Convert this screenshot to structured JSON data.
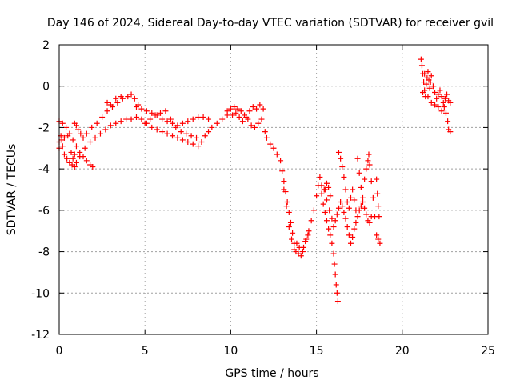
{
  "chart_data": {
    "type": "scatter",
    "title": "Day 146 of 2024, Sidereal Day-to-day VTEC variation (SDTVAR) for receiver gvil",
    "xlabel": "GPS time / hours",
    "ylabel": "SDTVAR / TECUs",
    "xlim": [
      0,
      25
    ],
    "ylim": [
      -12,
      2
    ],
    "xticks": [
      "0",
      "5",
      "10",
      "15",
      "20",
      "25"
    ],
    "yticks": [
      "2",
      "0",
      "-2",
      "-4",
      "-6",
      "-8",
      "-10",
      "-12"
    ],
    "xtick_values": [
      0,
      5,
      10,
      15,
      20,
      25
    ],
    "ytick_values": [
      2,
      0,
      -2,
      -4,
      -6,
      -8,
      -10,
      -12
    ],
    "grid": true,
    "marker": "+",
    "color": "#ff0000",
    "series": [
      {
        "name": "SDTVAR",
        "points": [
          [
            0.0,
            -3.0
          ],
          [
            0.1,
            -2.4
          ],
          [
            0.2,
            -2.9
          ],
          [
            0.3,
            -3.3
          ],
          [
            0.45,
            -3.5
          ],
          [
            0.6,
            -3.7
          ],
          [
            0.75,
            -3.8
          ],
          [
            0.9,
            -3.9
          ],
          [
            1.0,
            -3.7
          ],
          [
            1.2,
            -3.4
          ],
          [
            1.5,
            -3.0
          ],
          [
            1.8,
            -2.7
          ],
          [
            2.1,
            -2.5
          ],
          [
            2.4,
            -2.3
          ],
          [
            2.7,
            -2.1
          ],
          [
            3.0,
            -1.9
          ],
          [
            3.3,
            -1.8
          ],
          [
            3.6,
            -1.7
          ],
          [
            3.9,
            -1.6
          ],
          [
            4.2,
            -1.6
          ],
          [
            4.5,
            -1.5
          ],
          [
            4.8,
            -1.6
          ],
          [
            5.1,
            -1.8
          ],
          [
            5.4,
            -2.0
          ],
          [
            5.7,
            -2.1
          ],
          [
            6.0,
            -2.2
          ],
          [
            6.3,
            -2.3
          ],
          [
            6.6,
            -2.4
          ],
          [
            6.9,
            -2.5
          ],
          [
            7.2,
            -2.6
          ],
          [
            7.5,
            -2.7
          ],
          [
            7.8,
            -2.8
          ],
          [
            8.1,
            -2.9
          ],
          [
            8.3,
            -2.7
          ],
          [
            8.5,
            -2.4
          ],
          [
            8.7,
            -2.2
          ],
          [
            8.9,
            -2.0
          ],
          [
            9.2,
            -1.8
          ],
          [
            9.5,
            -1.6
          ],
          [
            9.8,
            -1.4
          ],
          [
            0.0,
            -1.7
          ],
          [
            0.2,
            -1.8
          ],
          [
            0.4,
            -2.0
          ],
          [
            0.6,
            -2.3
          ],
          [
            0.8,
            -2.6
          ],
          [
            1.0,
            -2.9
          ],
          [
            1.2,
            -3.2
          ],
          [
            1.4,
            -3.4
          ],
          [
            1.6,
            -3.6
          ],
          [
            1.8,
            -3.8
          ],
          [
            1.95,
            -3.9
          ],
          [
            0.0,
            -2.7
          ],
          [
            0.15,
            -2.6
          ],
          [
            0.3,
            -2.5
          ],
          [
            0.5,
            -2.4
          ],
          [
            0.7,
            -3.2
          ],
          [
            0.8,
            -3.5
          ],
          [
            0.9,
            -3.3
          ],
          [
            0.9,
            -1.8
          ],
          [
            1.0,
            -1.9
          ],
          [
            1.1,
            -2.1
          ],
          [
            1.25,
            -2.3
          ],
          [
            1.4,
            -2.5
          ],
          [
            1.6,
            -2.3
          ],
          [
            1.9,
            -2.0
          ],
          [
            2.2,
            -1.8
          ],
          [
            2.5,
            -1.5
          ],
          [
            2.8,
            -1.2
          ],
          [
            3.1,
            -1.0
          ],
          [
            3.4,
            -0.8
          ],
          [
            3.7,
            -0.6
          ],
          [
            4.0,
            -0.5
          ],
          [
            4.2,
            -0.4
          ],
          [
            4.4,
            -0.6
          ],
          [
            4.6,
            -0.9
          ],
          [
            2.8,
            -0.8
          ],
          [
            3.0,
            -0.9
          ],
          [
            3.3,
            -0.6
          ],
          [
            3.6,
            -0.5
          ],
          [
            4.5,
            -1.0
          ],
          [
            4.8,
            -1.1
          ],
          [
            5.1,
            -1.2
          ],
          [
            5.4,
            -1.3
          ],
          [
            5.7,
            -1.4
          ],
          [
            6.0,
            -1.6
          ],
          [
            6.3,
            -1.7
          ],
          [
            6.6,
            -1.8
          ],
          [
            6.9,
            -1.9
          ],
          [
            7.2,
            -1.8
          ],
          [
            7.5,
            -1.7
          ],
          [
            7.8,
            -1.6
          ],
          [
            8.1,
            -1.5
          ],
          [
            8.4,
            -1.5
          ],
          [
            8.7,
            -1.6
          ],
          [
            5.0,
            -1.8
          ],
          [
            5.3,
            -1.6
          ],
          [
            5.6,
            -1.4
          ],
          [
            5.9,
            -1.3
          ],
          [
            6.2,
            -1.2
          ],
          [
            6.5,
            -1.6
          ],
          [
            6.8,
            -2.0
          ],
          [
            7.1,
            -2.2
          ],
          [
            7.4,
            -2.3
          ],
          [
            7.7,
            -2.4
          ],
          [
            8.0,
            -2.5
          ],
          [
            9.8,
            -1.2
          ],
          [
            10.0,
            -1.1
          ],
          [
            10.2,
            -1.0
          ],
          [
            10.4,
            -1.1
          ],
          [
            10.6,
            -1.2
          ],
          [
            10.8,
            -1.4
          ],
          [
            11.0,
            -1.6
          ],
          [
            11.2,
            -1.9
          ],
          [
            11.4,
            -2.0
          ],
          [
            11.6,
            -1.8
          ],
          [
            11.8,
            -1.6
          ],
          [
            12.0,
            -2.2
          ],
          [
            10.1,
            -1.4
          ],
          [
            10.3,
            -1.3
          ],
          [
            10.5,
            -1.5
          ],
          [
            10.7,
            -1.7
          ],
          [
            10.9,
            -1.5
          ],
          [
            11.1,
            -1.2
          ],
          [
            11.3,
            -1.0
          ],
          [
            11.5,
            -1.1
          ],
          [
            11.7,
            -0.9
          ],
          [
            11.9,
            -1.1
          ],
          [
            12.1,
            -2.5
          ],
          [
            12.3,
            -2.8
          ],
          [
            12.5,
            -3.0
          ],
          [
            12.7,
            -3.3
          ],
          [
            12.9,
            -3.6
          ],
          [
            13.0,
            -4.1
          ],
          [
            13.1,
            -4.6
          ],
          [
            13.2,
            -5.1
          ],
          [
            13.3,
            -5.6
          ],
          [
            13.4,
            -6.1
          ],
          [
            13.5,
            -6.6
          ],
          [
            13.6,
            -7.1
          ],
          [
            13.7,
            -7.6
          ],
          [
            13.8,
            -8.0
          ],
          [
            13.95,
            -8.1
          ],
          [
            14.1,
            -8.2
          ],
          [
            14.25,
            -7.8
          ],
          [
            14.4,
            -7.4
          ],
          [
            14.55,
            -7.0
          ],
          [
            14.7,
            -6.5
          ],
          [
            14.85,
            -6.0
          ],
          [
            15.0,
            -5.3
          ],
          [
            15.1,
            -4.8
          ],
          [
            15.2,
            -4.4
          ],
          [
            13.1,
            -5.0
          ],
          [
            13.25,
            -5.8
          ],
          [
            13.4,
            -6.8
          ],
          [
            13.55,
            -7.4
          ],
          [
            13.7,
            -7.9
          ],
          [
            13.85,
            -7.6
          ],
          [
            14.0,
            -7.8
          ],
          [
            14.2,
            -8.0
          ],
          [
            14.35,
            -7.5
          ],
          [
            14.5,
            -7.2
          ],
          [
            15.3,
            -5.2
          ],
          [
            15.4,
            -5.7
          ],
          [
            15.5,
            -6.1
          ],
          [
            15.6,
            -6.5
          ],
          [
            15.7,
            -6.9
          ],
          [
            15.8,
            -7.2
          ],
          [
            15.9,
            -7.6
          ],
          [
            16.0,
            -8.1
          ],
          [
            16.05,
            -8.6
          ],
          [
            16.1,
            -9.1
          ],
          [
            16.15,
            -9.6
          ],
          [
            16.2,
            -10.0
          ],
          [
            16.25,
            -10.4
          ],
          [
            15.3,
            -4.8
          ],
          [
            15.45,
            -5.0
          ],
          [
            15.6,
            -5.5
          ],
          [
            15.75,
            -6.0
          ],
          [
            15.9,
            -6.4
          ],
          [
            16.0,
            -6.8
          ],
          [
            16.1,
            -6.5
          ],
          [
            16.2,
            -6.2
          ],
          [
            16.3,
            -5.9
          ],
          [
            16.4,
            -5.6
          ],
          [
            16.5,
            -5.8
          ],
          [
            16.6,
            -6.1
          ],
          [
            16.7,
            -6.4
          ],
          [
            16.8,
            -6.8
          ],
          [
            16.9,
            -7.2
          ],
          [
            17.0,
            -7.6
          ],
          [
            17.1,
            -7.3
          ],
          [
            17.2,
            -6.9
          ],
          [
            17.3,
            -6.6
          ],
          [
            17.4,
            -6.3
          ],
          [
            17.5,
            -6.0
          ],
          [
            17.6,
            -5.8
          ],
          [
            17.7,
            -5.6
          ],
          [
            17.8,
            -5.9
          ],
          [
            17.9,
            -6.2
          ],
          [
            18.0,
            -6.5
          ],
          [
            18.1,
            -6.6
          ],
          [
            18.2,
            -6.3
          ],
          [
            16.3,
            -3.2
          ],
          [
            16.4,
            -3.5
          ],
          [
            16.5,
            -3.9
          ],
          [
            16.6,
            -4.4
          ],
          [
            16.7,
            -5.0
          ],
          [
            16.8,
            -5.6
          ],
          [
            17.4,
            -3.5
          ],
          [
            17.5,
            -4.2
          ],
          [
            17.6,
            -4.9
          ],
          [
            17.7,
            -5.4
          ],
          [
            17.8,
            -4.5
          ],
          [
            17.9,
            -4.0
          ],
          [
            18.0,
            -3.6
          ],
          [
            18.05,
            -3.3
          ],
          [
            18.1,
            -3.8
          ],
          [
            18.2,
            -4.6
          ],
          [
            18.3,
            -5.4
          ],
          [
            18.4,
            -6.3
          ],
          [
            18.5,
            -4.5
          ],
          [
            18.55,
            -5.2
          ],
          [
            18.6,
            -5.8
          ],
          [
            18.65,
            -6.3
          ],
          [
            18.5,
            -7.2
          ],
          [
            18.6,
            -7.4
          ],
          [
            18.7,
            -7.6
          ],
          [
            15.5,
            -5.0
          ],
          [
            15.6,
            -4.7
          ],
          [
            15.7,
            -4.9
          ],
          [
            15.8,
            -5.3
          ],
          [
            16.9,
            -5.9
          ],
          [
            17.0,
            -5.4
          ],
          [
            17.1,
            -5.0
          ],
          [
            17.2,
            -5.5
          ],
          [
            17.3,
            -6.0
          ],
          [
            21.1,
            1.3
          ],
          [
            21.15,
            1.0
          ],
          [
            21.2,
            0.6
          ],
          [
            21.25,
            0.2
          ],
          [
            21.3,
            -0.2
          ],
          [
            21.35,
            -0.5
          ],
          [
            21.4,
            0.1
          ],
          [
            21.45,
            0.4
          ],
          [
            21.5,
            0.7
          ],
          [
            21.55,
            0.3
          ],
          [
            21.6,
            -0.1
          ],
          [
            21.65,
            0.2
          ],
          [
            21.7,
            0.5
          ],
          [
            21.8,
            0.0
          ],
          [
            21.9,
            -0.3
          ],
          [
            22.0,
            -0.6
          ],
          [
            22.1,
            -0.4
          ],
          [
            22.2,
            -0.2
          ],
          [
            22.3,
            -0.5
          ],
          [
            22.4,
            -0.8
          ],
          [
            22.5,
            -0.6
          ],
          [
            22.6,
            -0.4
          ],
          [
            22.7,
            -0.7
          ],
          [
            22.8,
            -0.8
          ],
          [
            21.2,
            -0.3
          ],
          [
            21.3,
            0.6
          ],
          [
            21.5,
            -0.5
          ],
          [
            21.7,
            -0.8
          ],
          [
            21.9,
            -0.9
          ],
          [
            22.1,
            -1.0
          ],
          [
            22.3,
            -1.2
          ],
          [
            22.45,
            -1.0
          ],
          [
            22.55,
            -1.3
          ],
          [
            22.65,
            -1.7
          ],
          [
            22.7,
            -2.1
          ],
          [
            22.8,
            -2.2
          ]
        ]
      }
    ]
  }
}
